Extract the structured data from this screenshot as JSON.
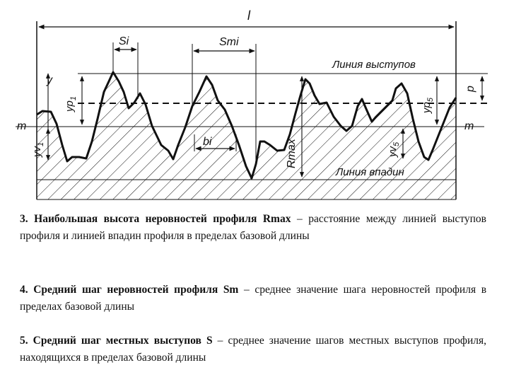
{
  "diagram": {
    "labels": {
      "l": "l",
      "si": "Si",
      "smi": "Smi",
      "line_peaks": "Линия выступов",
      "line_valleys": "Линия впадин",
      "y": "y",
      "yp1": "yp",
      "yp1_sub": "1",
      "p": "p",
      "yp5": "yp",
      "yp5_sub": "5",
      "m_left": "m",
      "m_right": "m",
      "yv1": "yv",
      "yv1_sub": "1",
      "bi": "bi",
      "rmax": "Rmax",
      "yv5": "yv",
      "yv5_sub": "5"
    },
    "colors": {
      "ink": "#111111",
      "background": "#ffffff"
    }
  },
  "definitions": [
    {
      "term": "3. Наибольшая высота неровностей профиля Rmax",
      "text": " – расстояние между линией выступов профиля и линией впадин профиля в пределах базовой длины"
    },
    {
      "term": "4. Средний шаг неровностей профиля Sm",
      "text": " – среднее значение шага неровностей профиля в пределах базовой длины"
    },
    {
      "term": "5. Средний шаг местных выступов S",
      "text": " – среднее значение шагов местных выступов профиля, находящихся в пределах базовой длины"
    }
  ]
}
